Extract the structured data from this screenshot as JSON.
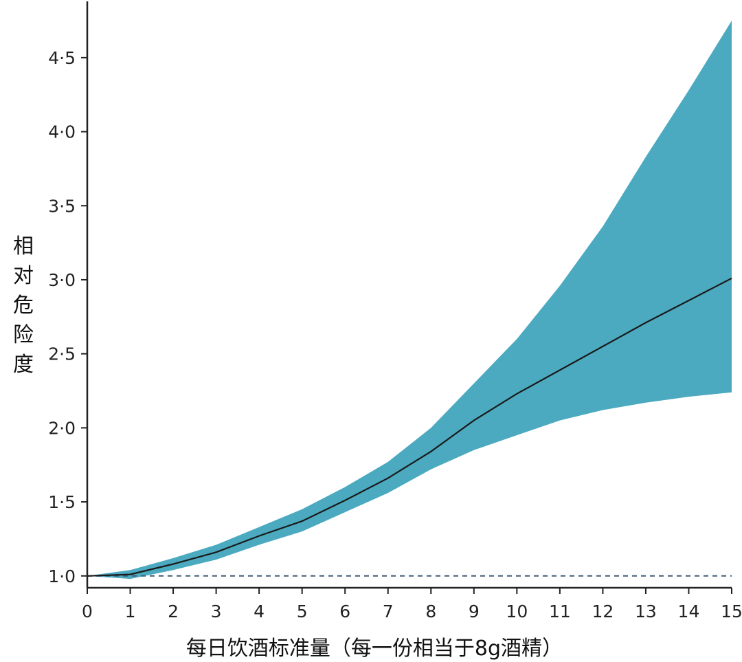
{
  "chart_data": {
    "type": "line",
    "xlabel": "每日饮酒标准量（每一份相当于8g酒精）",
    "ylabel": "相对危险度",
    "xlim": [
      0,
      15
    ],
    "ylim": [
      0.92,
      4.88
    ],
    "x_ticks": [
      "0",
      "1",
      "2",
      "3",
      "4",
      "5",
      "6",
      "7",
      "8",
      "9",
      "10",
      "11",
      "12",
      "13",
      "14",
      "15"
    ],
    "y_ticks": [
      "1·0",
      "1·5",
      "2·0",
      "2·5",
      "3·0",
      "3·5",
      "4·0",
      "4·5"
    ],
    "y_tick_values": [
      1.0,
      1.5,
      2.0,
      2.5,
      3.0,
      3.5,
      4.0,
      4.5
    ],
    "reference_line": {
      "y": 1.0,
      "style": "dashed",
      "color": "#3d5f7a"
    },
    "grid": false,
    "line_color": "#1a1a1a",
    "band_color": "#4baac0",
    "series": [
      {
        "type": "line",
        "x": [
          0,
          1,
          2,
          3,
          4,
          5,
          6,
          7,
          8,
          9,
          10,
          11,
          12,
          13,
          14,
          15
        ],
        "y": [
          1.0,
          1.01,
          1.08,
          1.16,
          1.27,
          1.37,
          1.51,
          1.66,
          1.84,
          2.05,
          2.23,
          2.39,
          2.55,
          2.71,
          2.86,
          3.01
        ]
      },
      {
        "type": "band",
        "x": [
          0,
          1,
          2,
          3,
          4,
          5,
          6,
          7,
          8,
          9,
          10,
          11,
          12,
          13,
          14,
          15
        ],
        "lower": [
          1.0,
          0.98,
          1.04,
          1.11,
          1.21,
          1.3,
          1.43,
          1.56,
          1.72,
          1.85,
          1.95,
          2.05,
          2.12,
          2.17,
          2.21,
          2.24
        ],
        "upper": [
          1.0,
          1.04,
          1.12,
          1.21,
          1.33,
          1.45,
          1.6,
          1.77,
          2.0,
          2.3,
          2.6,
          2.96,
          3.36,
          3.83,
          4.28,
          4.75
        ]
      }
    ]
  }
}
